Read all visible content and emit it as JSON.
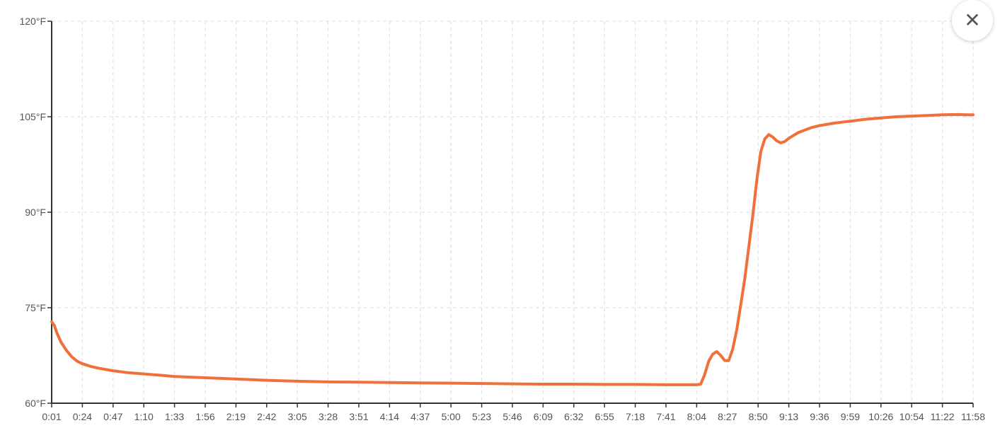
{
  "colors": {
    "line": "#F0703A",
    "grid": "#dddddd",
    "axis": "#333333",
    "text": "#555555"
  },
  "close_button": {
    "icon": "close-icon",
    "glyph": "✕"
  },
  "chart_data": {
    "type": "line",
    "title": "",
    "xlabel": "",
    "ylabel": "",
    "y_unit": "°F",
    "ylim": [
      60,
      120
    ],
    "yticks": [
      "60°F",
      "75°F",
      "90°F",
      "105°F",
      "120°F"
    ],
    "ytick_values": [
      60,
      75,
      90,
      105,
      120
    ],
    "x_ticks": [
      "0:01",
      "0:24",
      "0:47",
      "1:10",
      "1:33",
      "1:56",
      "2:19",
      "2:42",
      "3:05",
      "3:28",
      "3:51",
      "4:14",
      "4:37",
      "5:00",
      "5:23",
      "5:46",
      "6:09",
      "6:32",
      "6:55",
      "7:18",
      "7:41",
      "8:04",
      "8:27",
      "8:50",
      "9:13",
      "9:36",
      "9:59",
      "10:26",
      "10:54",
      "11:22",
      "11:58"
    ],
    "grid": true,
    "legend": "none",
    "series": [
      {
        "x": [
          "0:01",
          "0:03",
          "0:05",
          "0:08",
          "0:12",
          "0:16",
          "0:20",
          "0:24",
          "0:30",
          "0:36",
          "0:47",
          "0:58",
          "1:10",
          "1:22",
          "1:33",
          "1:56",
          "2:19",
          "2:42",
          "3:05",
          "3:28",
          "3:51",
          "4:14",
          "4:37",
          "5:00",
          "5:23",
          "5:46",
          "6:09",
          "6:32",
          "6:55",
          "7:18",
          "7:41",
          "8:04",
          "8:07",
          "8:10",
          "8:13",
          "8:16",
          "8:19",
          "8:22",
          "8:25",
          "8:28",
          "8:31",
          "8:34",
          "8:37",
          "8:40",
          "8:43",
          "8:46",
          "8:49",
          "8:52",
          "8:55",
          "8:58",
          "9:01",
          "9:04",
          "9:07",
          "9:10",
          "9:13",
          "9:16",
          "9:20",
          "9:25",
          "9:30",
          "9:36",
          "9:47",
          "9:59",
          "10:12",
          "10:26",
          "10:40",
          "10:54",
          "11:08",
          "11:22",
          "11:40",
          "11:50",
          "11:58"
        ],
        "y": [
          72.8,
          72.2,
          71.0,
          69.6,
          68.3,
          67.3,
          66.6,
          66.2,
          65.8,
          65.5,
          65.1,
          64.8,
          64.6,
          64.4,
          64.2,
          64.0,
          63.8,
          63.6,
          63.45,
          63.35,
          63.3,
          63.25,
          63.2,
          63.15,
          63.1,
          63.05,
          63.0,
          63.0,
          62.95,
          62.95,
          62.9,
          62.9,
          63.0,
          64.5,
          66.6,
          67.7,
          68.1,
          67.5,
          66.7,
          66.7,
          68.5,
          71.5,
          75.5,
          79.5,
          84.5,
          89.5,
          95.0,
          99.5,
          101.5,
          102.2,
          101.8,
          101.2,
          100.9,
          101.1,
          101.6,
          102.0,
          102.5,
          102.9,
          103.3,
          103.6,
          104.0,
          104.3,
          104.6,
          104.8,
          105.0,
          105.1,
          105.2,
          105.3,
          105.35,
          105.3,
          105.3
        ]
      }
    ]
  }
}
